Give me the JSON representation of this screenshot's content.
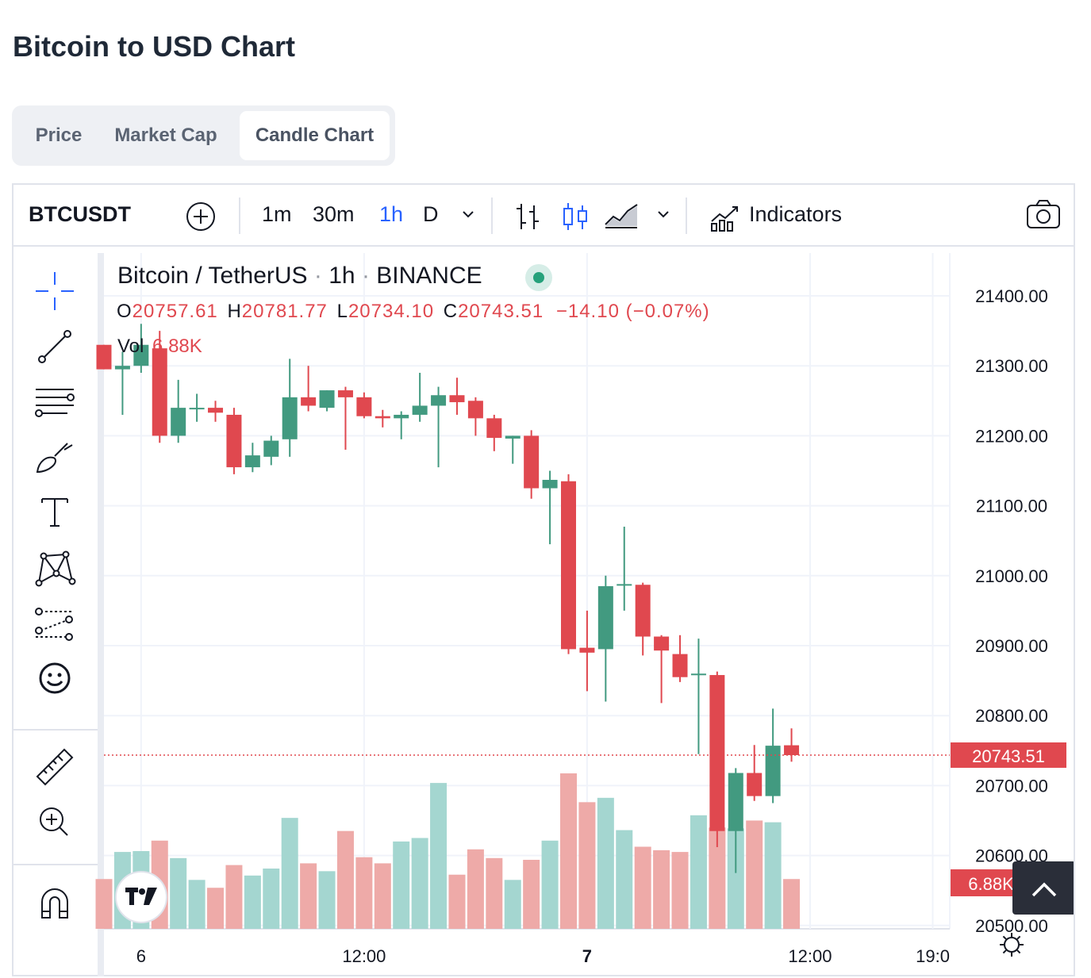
{
  "page": {
    "title": "Bitcoin to USD Chart"
  },
  "tabs": [
    {
      "label": "Price",
      "active": false
    },
    {
      "label": "Market Cap",
      "active": false
    },
    {
      "label": "Candle Chart",
      "active": true
    }
  ],
  "toolbar": {
    "symbol": "BTCUSDT",
    "intervals": [
      "1m",
      "30m",
      "1h",
      "D"
    ],
    "active_interval": "1h",
    "indicators_label": "Indicators",
    "accent_color": "#2962ff"
  },
  "legend": {
    "pair": "Bitcoin / TetherUS",
    "interval": "1h",
    "exchange": "BINANCE",
    "open_label": "O",
    "open": "20757.61",
    "high_label": "H",
    "high": "20781.77",
    "low_label": "L",
    "low": "20734.10",
    "close_label": "C",
    "close": "20743.51",
    "change": "−14.10 (−0.07%)",
    "vol_label": "Vol",
    "vol": "6.88K"
  },
  "colors": {
    "up": "#429a80",
    "down": "#e0484f",
    "up_vol": "#a4d6d0",
    "down_vol": "#eeaaa8",
    "grid": "#f0f3fa",
    "text": "#131722"
  },
  "chart_data": {
    "type": "candlestick",
    "x_tick_labels": [
      "6",
      "12:00",
      "7",
      "12:00",
      "19:0"
    ],
    "y_tick_labels": [
      "21400.00",
      "21300.00",
      "21200.00",
      "21100.00",
      "21000.00",
      "20900.00",
      "20800.00",
      "20700.00",
      "20600.00",
      "20500.00"
    ],
    "ylim": [
      20500,
      21430
    ],
    "last_price_label": "20743.51",
    "last_volume_label": "6.88K",
    "candles": [
      {
        "o": 21330,
        "h": 21330,
        "l": 21295,
        "c": 21295,
        "v": 0.57
      },
      {
        "o": 21295,
        "h": 21320,
        "l": 21230,
        "c": 21300,
        "v": 0.88
      },
      {
        "o": 21300,
        "h": 21360,
        "l": 21290,
        "c": 21330,
        "v": 0.89
      },
      {
        "o": 21325,
        "h": 21350,
        "l": 21190,
        "c": 21200,
        "v": 1.01
      },
      {
        "o": 21200,
        "h": 21280,
        "l": 21190,
        "c": 21240,
        "v": 0.81
      },
      {
        "o": 21240,
        "h": 21260,
        "l": 21220,
        "c": 21240,
        "v": 0.56
      },
      {
        "o": 21240,
        "h": 21250,
        "l": 21220,
        "c": 21233,
        "v": 0.47
      },
      {
        "o": 21230,
        "h": 21240,
        "l": 21145,
        "c": 21155,
        "v": 0.73
      },
      {
        "o": 21155,
        "h": 21190,
        "l": 21148,
        "c": 21172,
        "v": 0.61
      },
      {
        "o": 21170,
        "h": 21200,
        "l": 21158,
        "c": 21193,
        "v": 0.69
      },
      {
        "o": 21195,
        "h": 21310,
        "l": 21170,
        "c": 21255,
        "v": 1.27
      },
      {
        "o": 21255,
        "h": 21300,
        "l": 21235,
        "c": 21243,
        "v": 0.75
      },
      {
        "o": 21240,
        "h": 21265,
        "l": 21235,
        "c": 21265,
        "v": 0.66
      },
      {
        "o": 21265,
        "h": 21270,
        "l": 21180,
        "c": 21255,
        "v": 1.12
      },
      {
        "o": 21255,
        "h": 21262,
        "l": 21225,
        "c": 21228,
        "v": 0.82
      },
      {
        "o": 21228,
        "h": 21237,
        "l": 21212,
        "c": 21225,
        "v": 0.75
      },
      {
        "o": 21225,
        "h": 21235,
        "l": 21195,
        "c": 21230,
        "v": 1.0
      },
      {
        "o": 21230,
        "h": 21290,
        "l": 21220,
        "c": 21243,
        "v": 1.04
      },
      {
        "o": 21243,
        "h": 21270,
        "l": 21155,
        "c": 21258,
        "v": 1.67
      },
      {
        "o": 21258,
        "h": 21283,
        "l": 21230,
        "c": 21248,
        "v": 0.62
      },
      {
        "o": 21250,
        "h": 21255,
        "l": 21200,
        "c": 21225,
        "v": 0.91
      },
      {
        "o": 21225,
        "h": 21230,
        "l": 21178,
        "c": 21197,
        "v": 0.81
      },
      {
        "o": 21196,
        "h": 21200,
        "l": 21160,
        "c": 21200,
        "v": 0.56
      },
      {
        "o": 21200,
        "h": 21208,
        "l": 21110,
        "c": 21125,
        "v": 0.79
      },
      {
        "o": 21125,
        "h": 21150,
        "l": 21045,
        "c": 21137,
        "v": 1.01
      },
      {
        "o": 21135,
        "h": 21145,
        "l": 20888,
        "c": 20895,
        "v": 1.78
      },
      {
        "o": 20897,
        "h": 20950,
        "l": 20835,
        "c": 20890,
        "v": 1.45
      },
      {
        "o": 20895,
        "h": 21000,
        "l": 20820,
        "c": 20985,
        "v": 1.5
      },
      {
        "o": 20988,
        "h": 21070,
        "l": 20950,
        "c": 20988,
        "v": 1.13
      },
      {
        "o": 20987,
        "h": 20990,
        "l": 20886,
        "c": 20913,
        "v": 0.94
      },
      {
        "o": 20913,
        "h": 20915,
        "l": 20818,
        "c": 20893,
        "v": 0.9
      },
      {
        "o": 20888,
        "h": 20915,
        "l": 20848,
        "c": 20855,
        "v": 0.88
      },
      {
        "o": 20860,
        "h": 20910,
        "l": 20745,
        "c": 20860,
        "v": 1.3
      },
      {
        "o": 20858,
        "h": 20863,
        "l": 20612,
        "c": 20635,
        "v": 1.16
      },
      {
        "o": 20635,
        "h": 20725,
        "l": 20575,
        "c": 20718,
        "v": 1.15
      },
      {
        "o": 20718,
        "h": 20758,
        "l": 20678,
        "c": 20685,
        "v": 1.24
      },
      {
        "o": 20685,
        "h": 20810,
        "l": 20675,
        "c": 20757,
        "v": 1.22
      },
      {
        "o": 20757.61,
        "h": 20781.77,
        "l": 20734.1,
        "c": 20743.51,
        "v": 0.57
      }
    ]
  }
}
